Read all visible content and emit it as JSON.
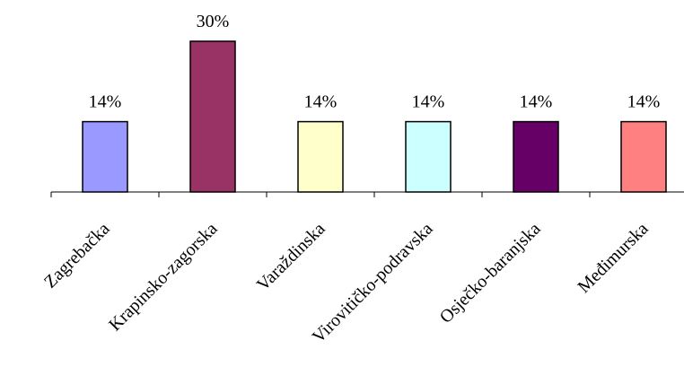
{
  "chart_data": {
    "type": "bar",
    "categories": [
      "Zagrebačka",
      "Krapinsko-zagorska",
      "Varaždinska",
      "Virovitičko-podravska",
      "Osječko-baranjska",
      "Međimurska"
    ],
    "values": [
      14,
      30,
      14,
      14,
      14,
      14
    ],
    "data_labels": [
      "14%",
      "30%",
      "14%",
      "14%",
      "14%",
      "14%"
    ],
    "bar_colors": [
      "#9999FF",
      "#993366",
      "#FFFFCC",
      "#CCFFFF",
      "#660066",
      "#FF8080"
    ],
    "ylim": [
      0,
      30
    ],
    "grid": false,
    "legend": "none",
    "title": "",
    "xlabel": "",
    "ylabel": ""
  }
}
